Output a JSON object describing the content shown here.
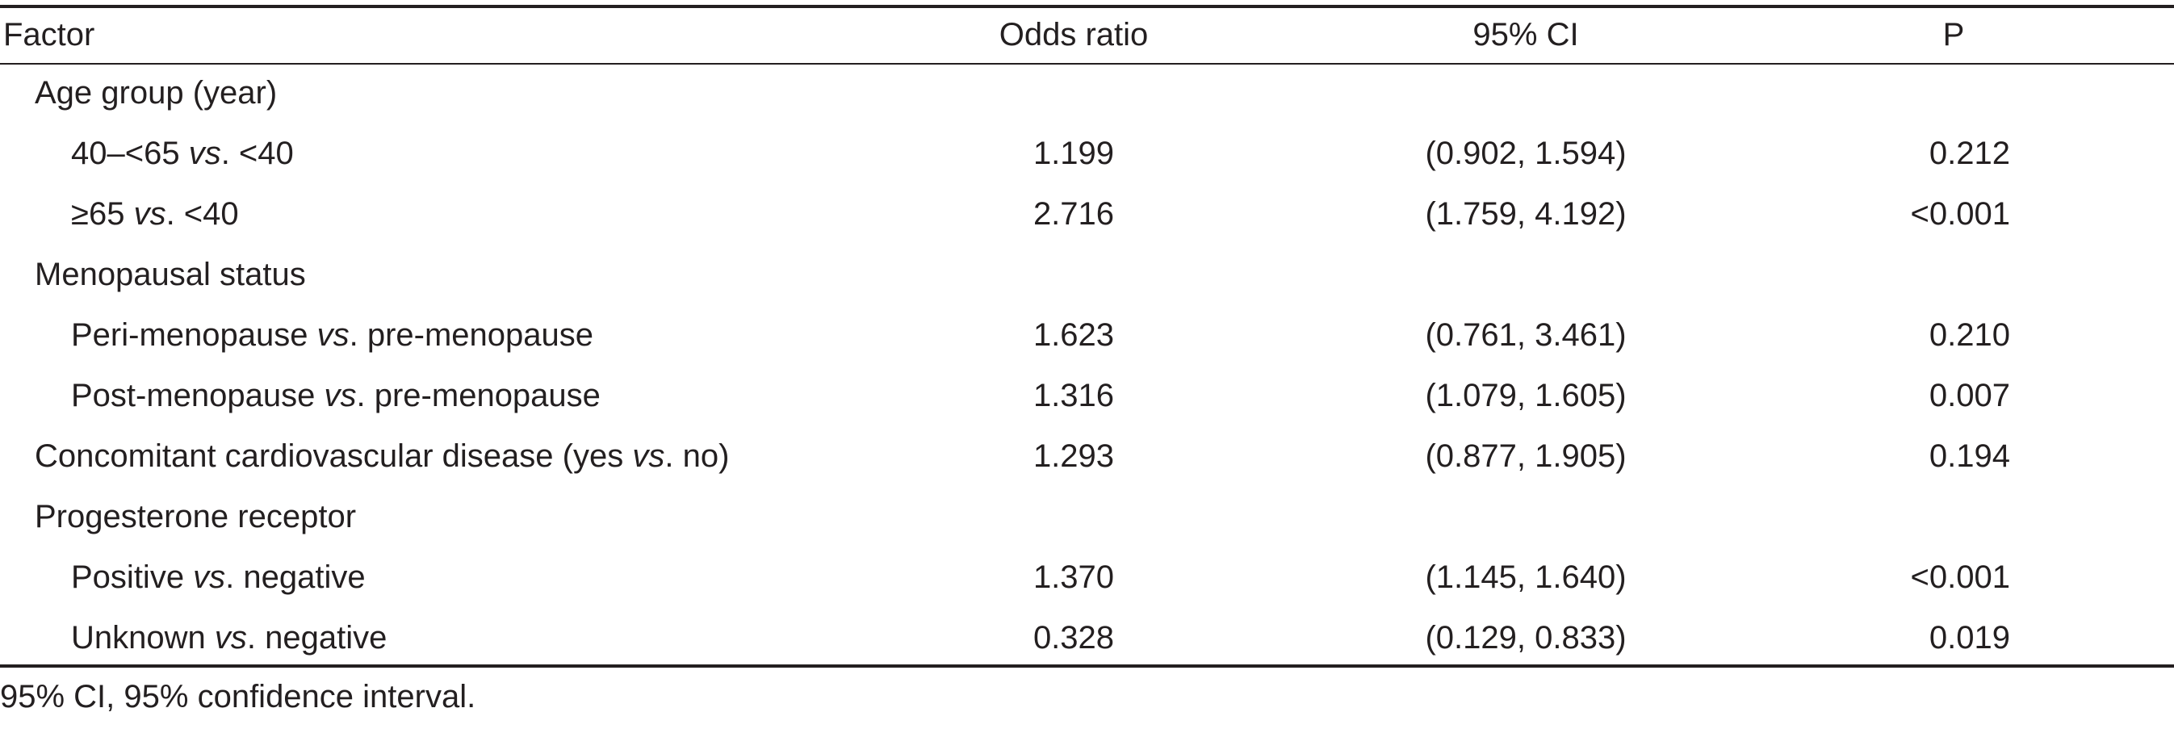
{
  "table": {
    "headers": {
      "factor": "Factor",
      "odds_ratio": "Odds ratio",
      "ci": "95% CI",
      "p": "P"
    },
    "rows": [
      {
        "type": "group",
        "label": "Age group (year)"
      },
      {
        "type": "item",
        "pre": "40–<65 ",
        "vs": "vs",
        "post": ". <40",
        "or": "1.199",
        "ci": "(0.902, 1.594)",
        "p": "0.212"
      },
      {
        "type": "item",
        "pre": "≥65 ",
        "vs": "vs",
        "post": ". <40",
        "or": "2.716",
        "ci": "(1.759, 4.192)",
        "p": "<0.001"
      },
      {
        "type": "group",
        "label": "Menopausal status"
      },
      {
        "type": "item",
        "pre": "Peri-menopause ",
        "vs": "vs",
        "post": ". pre-menopause",
        "or": "1.623",
        "ci": "(0.761, 3.461)",
        "p": "0.210"
      },
      {
        "type": "item",
        "pre": "Post-menopause ",
        "vs": "vs",
        "post": ". pre-menopause",
        "or": "1.316",
        "ci": "(1.079, 1.605)",
        "p": "0.007"
      },
      {
        "type": "single",
        "pre": "Concomitant cardiovascular disease (yes ",
        "vs": "vs",
        "post": ". no)",
        "or": "1.293",
        "ci": "(0.877, 1.905)",
        "p": "0.194"
      },
      {
        "type": "group",
        "label": "Progesterone receptor"
      },
      {
        "type": "item",
        "pre": "Positive ",
        "vs": "vs",
        "post": ". negative",
        "or": "1.370",
        "ci": "(1.145, 1.640)",
        "p": "<0.001"
      },
      {
        "type": "item",
        "pre": "Unknown ",
        "vs": "vs",
        "post": ". negative",
        "or": "0.328",
        "ci": "(0.129, 0.833)",
        "p": "0.019"
      }
    ],
    "footnote": "95% CI, 95% confidence interval."
  }
}
